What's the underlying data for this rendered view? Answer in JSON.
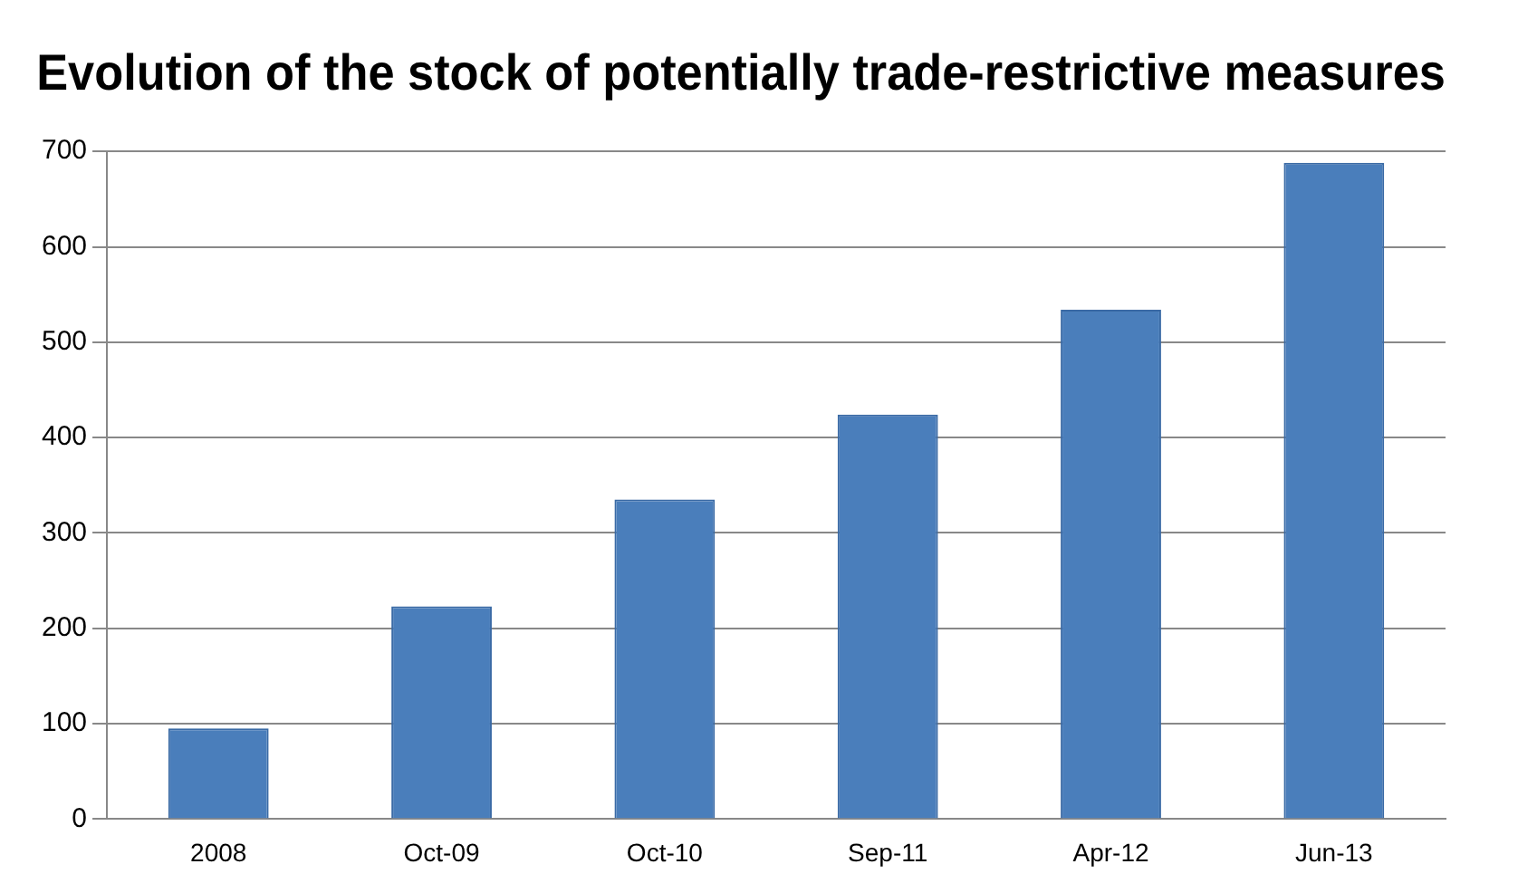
{
  "chart_data": {
    "type": "bar",
    "title": "Evolution of the stock of potentially trade-restrictive measures",
    "categories": [
      "2008",
      "Oct-09",
      "Oct-10",
      "Sep-11",
      "Apr-12",
      "Jun-13"
    ],
    "values": [
      95,
      223,
      335,
      424,
      534,
      688
    ],
    "color": "#4a7ebb",
    "ylim": [
      0,
      700
    ],
    "yticks": [
      0,
      100,
      200,
      300,
      400,
      500,
      600,
      700
    ],
    "grid": "y",
    "legend": false
  }
}
